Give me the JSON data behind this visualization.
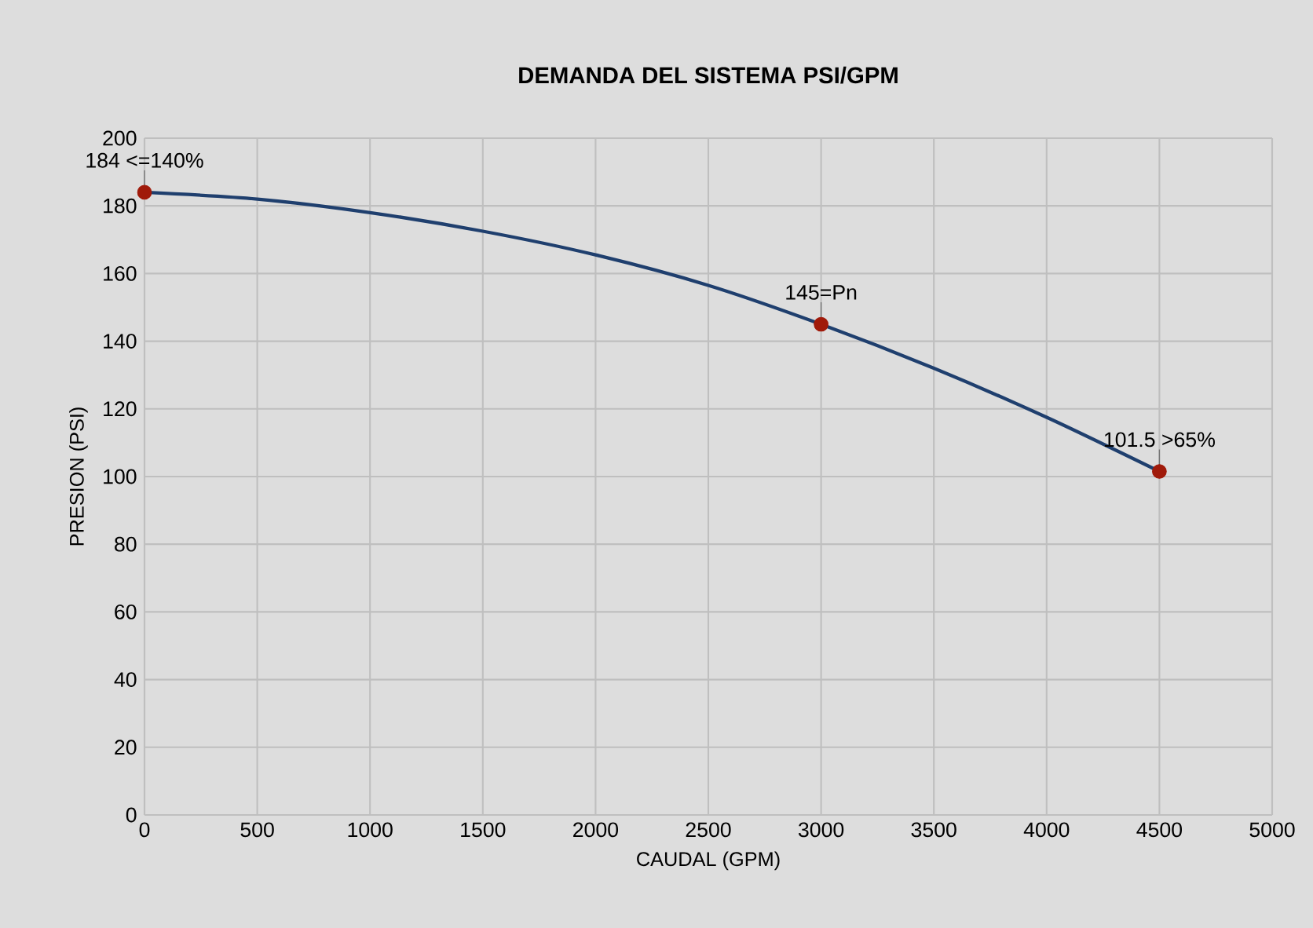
{
  "chart_data": {
    "type": "line",
    "title": "DEMANDA DEL SISTEMA PSI/GPM",
    "xlabel": "CAUDAL (GPM)",
    "ylabel": "PRESION (PSI)",
    "series": [
      {
        "x": [
          0,
          500,
          1000,
          1500,
          2000,
          2500,
          3000,
          3500,
          4000,
          4500
        ],
        "values": [
          184,
          182,
          178,
          172.5,
          165.5,
          156.5,
          145,
          132,
          117.5,
          101.5
        ],
        "color": "#1f3f6e"
      },
      {
        "type": "scatter",
        "x": [
          0,
          3000,
          4500
        ],
        "values": [
          184,
          145,
          101.5
        ],
        "color": "#a01a0a"
      }
    ],
    "xlim": [
      0,
      5000
    ],
    "xticks": [
      0,
      500,
      1000,
      1500,
      2000,
      2500,
      3000,
      3500,
      4000,
      4500,
      5000
    ],
    "ylim": [
      0,
      200
    ],
    "yticks": [
      0,
      20,
      40,
      60,
      80,
      100,
      120,
      140,
      160,
      180,
      200
    ],
    "grid": true,
    "line_style": "solid",
    "annotations": [
      {
        "text": "184 <=140%",
        "x": 0,
        "y": 184
      },
      {
        "text": "145=Pn",
        "x": 3000,
        "y": 145
      },
      {
        "text": "101.5 >65%",
        "x": 4500,
        "y": 101.5
      }
    ]
  }
}
